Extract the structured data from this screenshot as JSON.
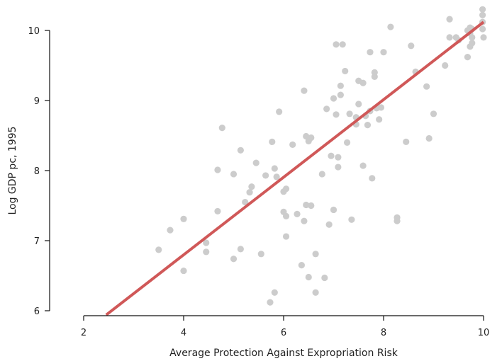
{
  "chart_data": {
    "type": "scatter",
    "title": "",
    "xlabel": "Average Protection Against Expropriation Risk",
    "ylabel": "Log GDP pc, 1995",
    "xlim": [
      2,
      10
    ],
    "ylim": [
      6,
      10
    ],
    "xticks": [
      "2",
      "4",
      "6",
      "8",
      "10"
    ],
    "yticks": [
      "6",
      "7",
      "8",
      "9",
      "10"
    ],
    "grid": false,
    "point_color": "#cccccc",
    "line_color": "#d05858",
    "fit_line": {
      "x": [
        2.45,
        10.0
      ],
      "y": [
        5.94,
        10.12
      ]
    },
    "points": [
      {
        "x": 3.5,
        "y": 6.87
      },
      {
        "x": 3.73,
        "y": 7.15
      },
      {
        "x": 4.0,
        "y": 7.31
      },
      {
        "x": 4.0,
        "y": 6.57
      },
      {
        "x": 4.45,
        "y": 6.97
      },
      {
        "x": 4.45,
        "y": 6.84
      },
      {
        "x": 4.68,
        "y": 8.01
      },
      {
        "x": 4.68,
        "y": 7.42
      },
      {
        "x": 4.77,
        "y": 8.61
      },
      {
        "x": 5.0,
        "y": 7.95
      },
      {
        "x": 5.0,
        "y": 6.74
      },
      {
        "x": 5.14,
        "y": 8.29
      },
      {
        "x": 5.14,
        "y": 6.88
      },
      {
        "x": 5.23,
        "y": 7.55
      },
      {
        "x": 5.32,
        "y": 7.69
      },
      {
        "x": 5.36,
        "y": 7.77
      },
      {
        "x": 5.45,
        "y": 8.11
      },
      {
        "x": 5.55,
        "y": 6.81
      },
      {
        "x": 5.64,
        "y": 7.93
      },
      {
        "x": 5.73,
        "y": 6.12
      },
      {
        "x": 5.77,
        "y": 8.41
      },
      {
        "x": 5.82,
        "y": 8.03
      },
      {
        "x": 5.82,
        "y": 6.26
      },
      {
        "x": 5.86,
        "y": 7.91
      },
      {
        "x": 5.91,
        "y": 8.84
      },
      {
        "x": 6.0,
        "y": 7.41
      },
      {
        "x": 6.0,
        "y": 7.7
      },
      {
        "x": 6.05,
        "y": 7.74
      },
      {
        "x": 6.05,
        "y": 7.35
      },
      {
        "x": 6.05,
        "y": 7.06
      },
      {
        "x": 6.18,
        "y": 8.37
      },
      {
        "x": 6.27,
        "y": 7.38
      },
      {
        "x": 6.36,
        "y": 6.65
      },
      {
        "x": 6.41,
        "y": 9.14
      },
      {
        "x": 6.41,
        "y": 7.28
      },
      {
        "x": 6.45,
        "y": 8.49
      },
      {
        "x": 6.45,
        "y": 7.51
      },
      {
        "x": 6.5,
        "y": 8.42
      },
      {
        "x": 6.5,
        "y": 6.48
      },
      {
        "x": 6.55,
        "y": 8.47
      },
      {
        "x": 6.55,
        "y": 7.5
      },
      {
        "x": 6.64,
        "y": 6.81
      },
      {
        "x": 6.64,
        "y": 6.26
      },
      {
        "x": 6.77,
        "y": 7.95
      },
      {
        "x": 6.82,
        "y": 6.47
      },
      {
        "x": 6.86,
        "y": 8.88
      },
      {
        "x": 6.91,
        "y": 7.23
      },
      {
        "x": 6.95,
        "y": 8.21
      },
      {
        "x": 7.0,
        "y": 9.03
      },
      {
        "x": 7.0,
        "y": 7.44
      },
      {
        "x": 7.05,
        "y": 9.8
      },
      {
        "x": 7.05,
        "y": 8.8
      },
      {
        "x": 7.09,
        "y": 8.19
      },
      {
        "x": 7.09,
        "y": 8.05
      },
      {
        "x": 7.14,
        "y": 9.21
      },
      {
        "x": 7.14,
        "y": 9.08
      },
      {
        "x": 7.18,
        "y": 9.8
      },
      {
        "x": 7.23,
        "y": 9.42
      },
      {
        "x": 7.27,
        "y": 8.4
      },
      {
        "x": 7.32,
        "y": 8.81
      },
      {
        "x": 7.36,
        "y": 7.3
      },
      {
        "x": 7.45,
        "y": 8.76
      },
      {
        "x": 7.45,
        "y": 8.66
      },
      {
        "x": 7.5,
        "y": 9.28
      },
      {
        "x": 7.5,
        "y": 8.95
      },
      {
        "x": 7.59,
        "y": 9.25
      },
      {
        "x": 7.59,
        "y": 8.07
      },
      {
        "x": 7.64,
        "y": 8.78
      },
      {
        "x": 7.68,
        "y": 8.65
      },
      {
        "x": 7.73,
        "y": 9.69
      },
      {
        "x": 7.73,
        "y": 8.85
      },
      {
        "x": 7.77,
        "y": 7.89
      },
      {
        "x": 7.82,
        "y": 9.4
      },
      {
        "x": 7.82,
        "y": 9.34
      },
      {
        "x": 7.86,
        "y": 8.89
      },
      {
        "x": 7.91,
        "y": 8.73
      },
      {
        "x": 7.95,
        "y": 8.9
      },
      {
        "x": 8.0,
        "y": 9.69
      },
      {
        "x": 8.14,
        "y": 10.05
      },
      {
        "x": 8.27,
        "y": 7.33
      },
      {
        "x": 8.27,
        "y": 7.28
      },
      {
        "x": 8.45,
        "y": 8.41
      },
      {
        "x": 8.55,
        "y": 9.78
      },
      {
        "x": 8.64,
        "y": 9.41
      },
      {
        "x": 8.86,
        "y": 9.2
      },
      {
        "x": 8.91,
        "y": 8.46
      },
      {
        "x": 9.0,
        "y": 8.81
      },
      {
        "x": 9.23,
        "y": 9.5
      },
      {
        "x": 9.32,
        "y": 10.16
      },
      {
        "x": 9.32,
        "y": 9.9
      },
      {
        "x": 9.45,
        "y": 9.9
      },
      {
        "x": 9.5,
        "y": 9.86
      },
      {
        "x": 9.68,
        "y": 10.0
      },
      {
        "x": 9.68,
        "y": 9.62
      },
      {
        "x": 9.73,
        "y": 10.04
      },
      {
        "x": 9.73,
        "y": 9.96
      },
      {
        "x": 9.73,
        "y": 9.77
      },
      {
        "x": 9.77,
        "y": 10.02
      },
      {
        "x": 9.77,
        "y": 9.9
      },
      {
        "x": 9.77,
        "y": 9.82
      },
      {
        "x": 9.98,
        "y": 10.3
      },
      {
        "x": 9.98,
        "y": 10.22
      },
      {
        "x": 9.98,
        "y": 10.12
      },
      {
        "x": 9.98,
        "y": 10.02
      },
      {
        "x": 10.0,
        "y": 9.9
      }
    ]
  }
}
